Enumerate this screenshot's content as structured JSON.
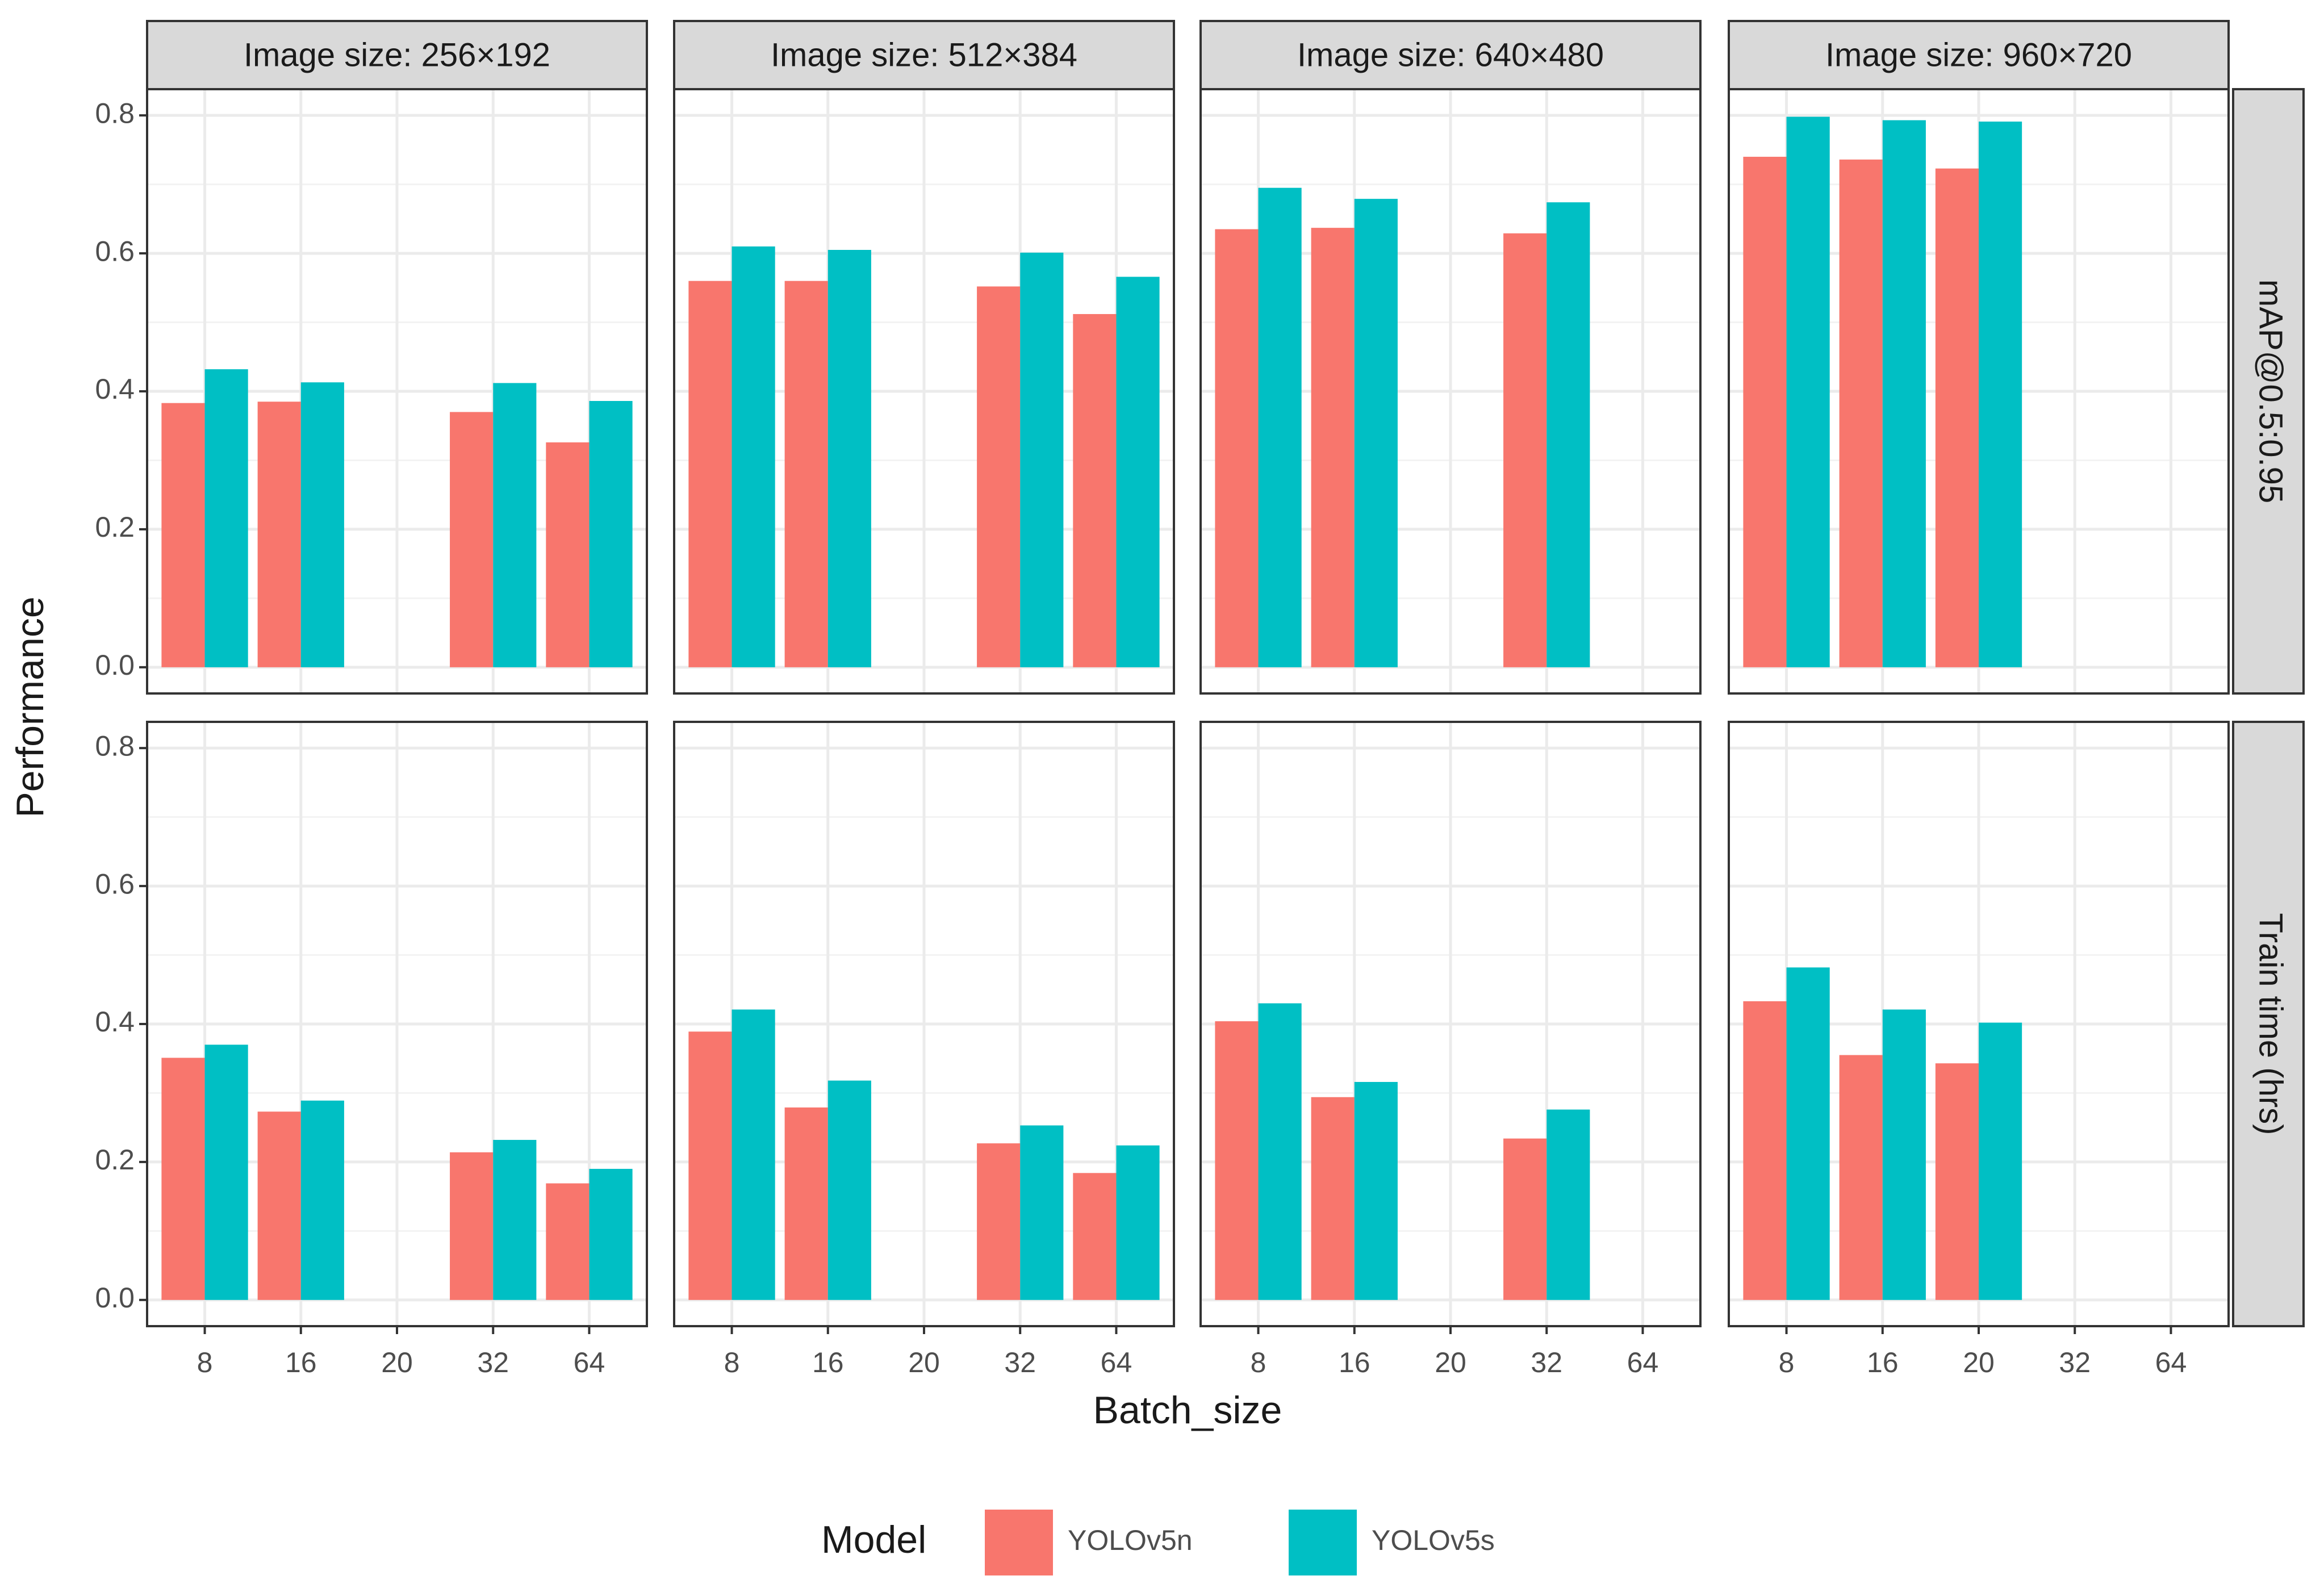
{
  "chart_data": {
    "type": "bar",
    "y_label": "Performance",
    "x_label": "Batch_size",
    "legend": {
      "title": "Model",
      "position": "bottom"
    },
    "columns": [
      "Image size: 256×192",
      "Image size: 512×384",
      "Image size: 640×480",
      "Image size: 960×720"
    ],
    "rows": [
      "mAP@0.5:0.95",
      "Train time (hrs)"
    ],
    "categories": [
      "8",
      "16",
      "20",
      "32",
      "64"
    ],
    "series": [
      {
        "name": "YOLOv5n",
        "color": "#F8766D"
      },
      {
        "name": "YOLOv5s",
        "color": "#00BFC4"
      }
    ],
    "values": [
      [
        [
          [
            0.383,
            0.385,
            null,
            0.37,
            0.326
          ],
          [
            0.432,
            0.413,
            null,
            0.412,
            0.386
          ]
        ],
        [
          [
            0.56,
            0.56,
            null,
            0.552,
            0.512
          ],
          [
            0.61,
            0.605,
            null,
            0.601,
            0.566
          ]
        ],
        [
          [
            0.635,
            0.637,
            null,
            0.629,
            null
          ],
          [
            0.695,
            0.679,
            null,
            0.674,
            null
          ]
        ],
        [
          [
            0.74,
            0.736,
            0.723,
            null,
            null
          ],
          [
            0.798,
            0.793,
            0.791,
            null,
            null
          ]
        ]
      ],
      [
        [
          [
            0.351,
            0.273,
            null,
            0.214,
            0.169
          ],
          [
            0.37,
            0.289,
            null,
            0.232,
            0.19
          ]
        ],
        [
          [
            0.389,
            0.279,
            null,
            0.227,
            0.184
          ],
          [
            0.421,
            0.318,
            null,
            0.253,
            0.224
          ]
        ],
        [
          [
            0.404,
            0.294,
            null,
            0.234,
            null
          ],
          [
            0.43,
            0.316,
            null,
            0.276,
            null
          ]
        ],
        [
          [
            0.433,
            0.355,
            0.343,
            null,
            null
          ],
          [
            0.482,
            0.421,
            0.402,
            null,
            null
          ]
        ]
      ]
    ],
    "ylim": [
      -0.038,
      0.838
    ],
    "yticks": [
      {
        "value": 0,
        "label": "0.0"
      },
      0.2,
      0.4,
      0.6,
      0.8
    ],
    "grid": true
  }
}
